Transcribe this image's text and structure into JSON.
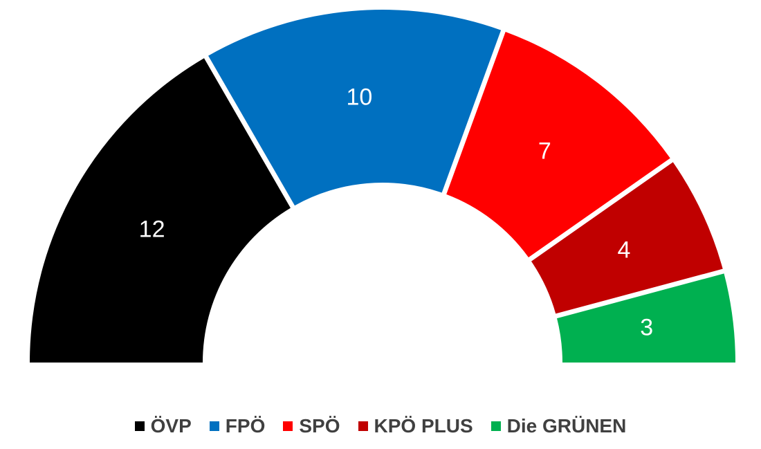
{
  "chart_data": {
    "type": "pie",
    "subtype": "half-donut",
    "categories": [
      "ÖVP",
      "FPÖ",
      "SPÖ",
      "KPÖ PLUS",
      "Die GRÜNEN"
    ],
    "values": [
      12,
      10,
      7,
      4,
      3
    ],
    "colors": [
      "#000000",
      "#0070c0",
      "#ff0000",
      "#c00000",
      "#00b050"
    ],
    "title": "",
    "legend_position": "bottom",
    "data_labels": "inside"
  }
}
